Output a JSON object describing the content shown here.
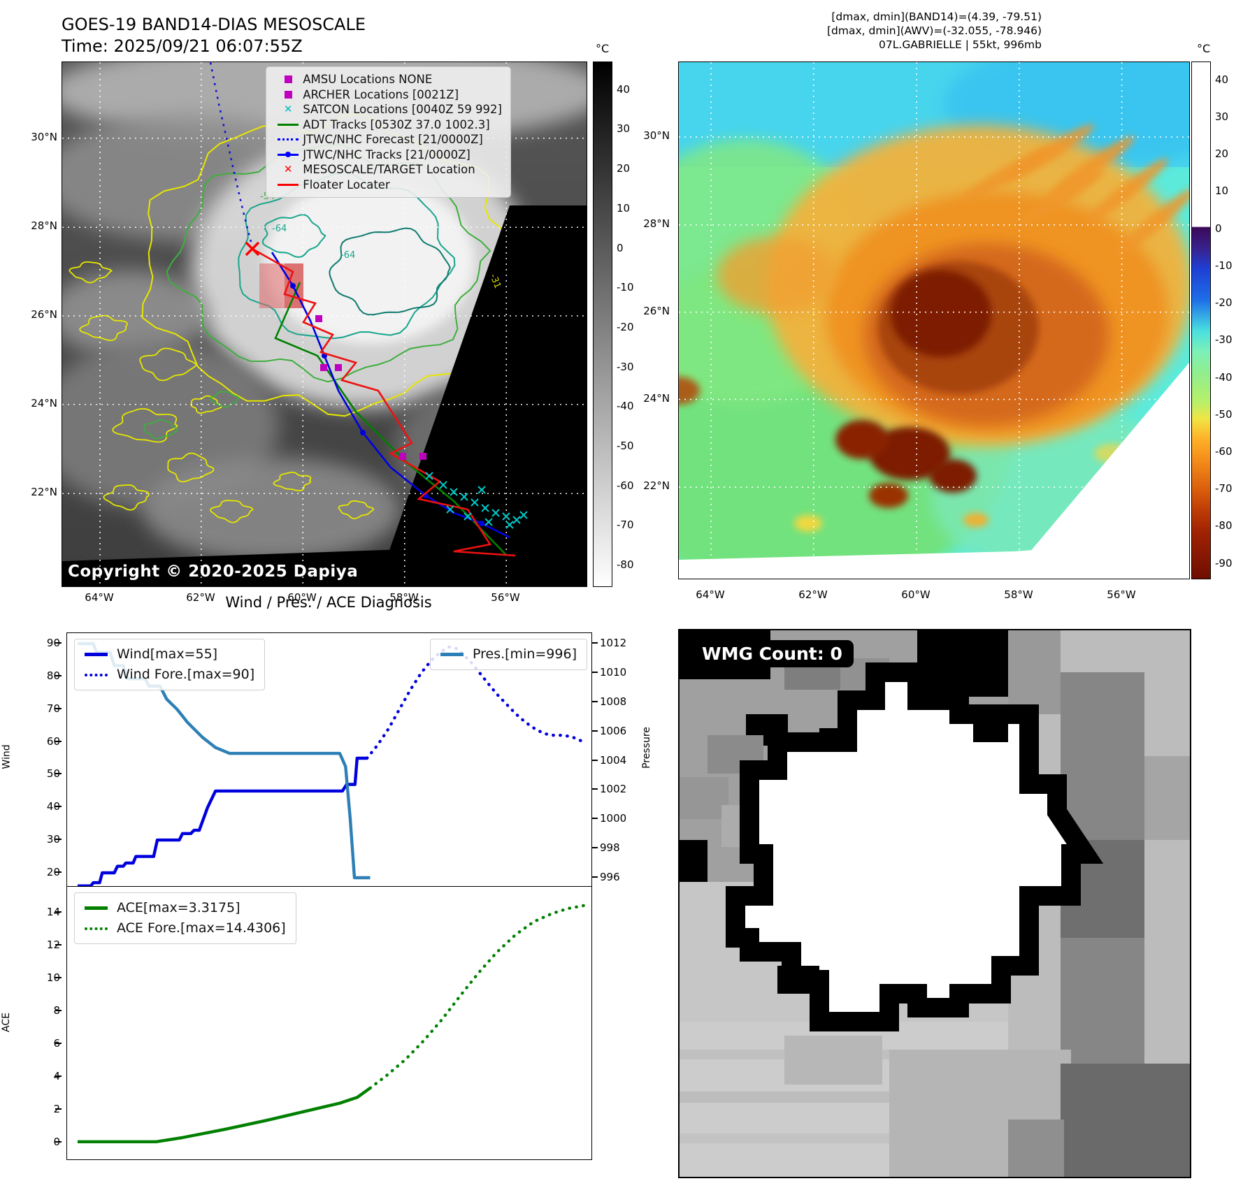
{
  "header": {
    "title_line1": "GOES-19 BAND14-DIAS MESOSCALE",
    "title_line2": "Time: 2025/09/21 06:07:55Z",
    "info_line1": "[dmax, dmin](BAND14)=(4.39, -79.51)",
    "info_line2": "[dmax, dmin](AWV)=(-32.055, -78.946)",
    "info_line3": "07L.GABRIELLE | 55kt, 996mb"
  },
  "band14_panel": {
    "copyright": "Copyright © 2020-2025 Dapiya",
    "legend_items": [
      {
        "label": "AMSU Locations NONE",
        "marker": "square",
        "color": "#bf00bf"
      },
      {
        "label": "ARCHER Locations [0021Z]",
        "marker": "square",
        "color": "#bf00bf"
      },
      {
        "label": "SATCON Locations [0040Z 59 992]",
        "marker": "x",
        "color": "#00bfbf"
      },
      {
        "label": "ADT Tracks [0530Z 37.0 1002.3]",
        "marker": "line",
        "color": "#007f00"
      },
      {
        "label": "JTWC/NHC Forecast [21/0000Z]",
        "marker": "dotted",
        "color": "#0000ff"
      },
      {
        "label": "JTWC/NHC Tracks [21/0000Z]",
        "marker": "line-dot",
        "color": "#0000ff"
      },
      {
        "label": "MESOSCALE/TARGET Location",
        "marker": "x",
        "color": "#ff0000"
      },
      {
        "label": "Floater Locater",
        "marker": "line",
        "color": "#ff0000"
      }
    ],
    "contour_labels": [
      {
        "text": "-54",
        "color": "#3fae3f"
      },
      {
        "text": "-64",
        "color": "#18a58c"
      },
      {
        "text": "-31",
        "color": "#d8d800"
      }
    ],
    "axes": {
      "lat_ticks": [
        "30°N",
        "28°N",
        "26°N",
        "24°N",
        "22°N"
      ],
      "lon_ticks": [
        "64°W",
        "62°W",
        "60°W",
        "58°W",
        "56°W"
      ]
    },
    "colorbar": {
      "unit": "°C",
      "ticks": [
        "40",
        "30",
        "20",
        "10",
        "0",
        "-10",
        "-20",
        "-30",
        "-40",
        "-50",
        "-60",
        "-70",
        "-80"
      ],
      "stops": [
        [
          "0%",
          "#000000"
        ],
        [
          "100%",
          "#ffffff"
        ]
      ]
    }
  },
  "awv_panel": {
    "axes": {
      "lat_ticks": [
        "30°N",
        "28°N",
        "26°N",
        "24°N",
        "22°N"
      ],
      "lon_ticks": [
        "64°W",
        "62°W",
        "60°W",
        "58°W",
        "56°W"
      ]
    },
    "colorbar": {
      "unit": "°C",
      "ticks": [
        "40",
        "30",
        "20",
        "10",
        "0",
        "-10",
        "-20",
        "-30",
        "-40",
        "-50",
        "-60",
        "-70",
        "-80",
        "-90"
      ],
      "stops": [
        [
          "0%",
          "#ffffff"
        ],
        [
          "31.8%",
          "#ffffff"
        ],
        [
          "32%",
          "#3b0a59"
        ],
        [
          "36%",
          "#38218c"
        ],
        [
          "40%",
          "#1f3fd4"
        ],
        [
          "46%",
          "#1e6ee8"
        ],
        [
          "52%",
          "#48dfe0"
        ],
        [
          "56%",
          "#7df0b8"
        ],
        [
          "60%",
          "#8fee8f"
        ],
        [
          "66%",
          "#b9f068"
        ],
        [
          "69%",
          "#f0e545"
        ],
        [
          "73%",
          "#ffb028"
        ],
        [
          "78%",
          "#f08518"
        ],
        [
          "83%",
          "#d95c0c"
        ],
        [
          "87%",
          "#bc3a06"
        ],
        [
          "91%",
          "#a02202"
        ],
        [
          "100%",
          "#6e0e00"
        ]
      ]
    }
  },
  "diagnosis": {
    "title": "Wind / Pres. / ACE Diagnosis"
  },
  "chart_data": [
    {
      "type": "line",
      "title": "Wind / Pres. / ACE Diagnosis",
      "ylabel_left": "Wind",
      "ylabel_right": "Pressure",
      "yticks_left": [
        20,
        30,
        40,
        50,
        60,
        70,
        80,
        90
      ],
      "ylim_left": [
        15,
        93
      ],
      "yticks_right": [
        996,
        998,
        1000,
        1002,
        1004,
        1006,
        1008,
        1010,
        1012
      ],
      "ylim_right": [
        995.3,
        1012.7
      ],
      "grid": false,
      "series": [
        {
          "name": "Wind[max=55]",
          "axis": "left",
          "style": "solid",
          "color": "#0000dd",
          "points": [
            [
              0.02,
              16
            ],
            [
              0.045,
              16
            ],
            [
              0.05,
              17
            ],
            [
              0.062,
              17
            ],
            [
              0.067,
              20
            ],
            [
              0.09,
              20
            ],
            [
              0.096,
              22
            ],
            [
              0.107,
              22
            ],
            [
              0.112,
              23
            ],
            [
              0.126,
              23
            ],
            [
              0.131,
              25
            ],
            [
              0.165,
              25
            ],
            [
              0.172,
              30
            ],
            [
              0.214,
              30
            ],
            [
              0.22,
              32
            ],
            [
              0.236,
              32
            ],
            [
              0.242,
              33
            ],
            [
              0.252,
              33
            ],
            [
              0.268,
              40
            ],
            [
              0.283,
              45
            ],
            [
              0.525,
              45
            ],
            [
              0.533,
              47
            ],
            [
              0.549,
              47
            ],
            [
              0.553,
              55
            ],
            [
              0.572,
              55
            ]
          ]
        },
        {
          "name": "Wind Fore.[max=90]",
          "axis": "left",
          "style": "dotted",
          "color": "#0000dd",
          "points": [
            [
              0.572,
              55
            ],
            [
              0.592,
              59
            ],
            [
              0.613,
              64
            ],
            [
              0.634,
              70
            ],
            [
              0.655,
              76
            ],
            [
              0.675,
              81
            ],
            [
              0.695,
              85
            ],
            [
              0.713,
              87.5
            ],
            [
              0.728,
              89
            ],
            [
              0.742,
              88.5
            ],
            [
              0.757,
              86.5
            ],
            [
              0.772,
              84
            ],
            [
              0.787,
              81
            ],
            [
              0.802,
              78
            ],
            [
              0.82,
              74.5
            ],
            [
              0.838,
              71.5
            ],
            [
              0.856,
              68.5
            ],
            [
              0.874,
              66
            ],
            [
              0.892,
              64
            ],
            [
              0.91,
              62.5
            ],
            [
              0.928,
              62
            ],
            [
              0.946,
              62
            ],
            [
              0.963,
              61.5
            ],
            [
              0.985,
              60
            ]
          ]
        },
        {
          "name": "Pres.[min=996]",
          "axis": "right",
          "style": "solid",
          "color": "#2d7fb5",
          "points": [
            [
              0.02,
              1012
            ],
            [
              0.05,
              1012
            ],
            [
              0.056,
              1011.4
            ],
            [
              0.082,
              1011.4
            ],
            [
              0.09,
              1010.5
            ],
            [
              0.107,
              1010.5
            ],
            [
              0.115,
              1009.6
            ],
            [
              0.149,
              1009.6
            ],
            [
              0.156,
              1009.1
            ],
            [
              0.177,
              1009.1
            ],
            [
              0.19,
              1008.2
            ],
            [
              0.21,
              1007.5
            ],
            [
              0.23,
              1006.6
            ],
            [
              0.258,
              1005.6
            ],
            [
              0.283,
              1004.9
            ],
            [
              0.31,
              1004.5
            ],
            [
              0.52,
              1004.5
            ],
            [
              0.531,
              1003.6
            ],
            [
              0.54,
              1000
            ],
            [
              0.548,
              996
            ],
            [
              0.578,
              996
            ]
          ]
        }
      ]
    },
    {
      "type": "line",
      "ylabel_left": "ACE",
      "yticks_left": [
        0,
        2,
        4,
        6,
        8,
        10,
        12,
        14
      ],
      "ylim_left": [
        -0.8,
        15.2
      ],
      "grid": false,
      "series": [
        {
          "name": "ACE[max=3.3175]",
          "axis": "left",
          "style": "solid",
          "color": "#008000",
          "points": [
            [
              0.02,
              0.05
            ],
            [
              0.17,
              0.05
            ],
            [
              0.22,
              0.3
            ],
            [
              0.3,
              0.8
            ],
            [
              0.38,
              1.35
            ],
            [
              0.46,
              1.95
            ],
            [
              0.52,
              2.4
            ],
            [
              0.553,
              2.75
            ],
            [
              0.578,
              3.3175
            ]
          ]
        },
        {
          "name": "ACE Fore.[max=14.4306]",
          "axis": "left",
          "style": "dotted",
          "color": "#008000",
          "points": [
            [
              0.578,
              3.3175
            ],
            [
              0.61,
              4.1
            ],
            [
              0.645,
              5.05
            ],
            [
              0.68,
              6.2
            ],
            [
              0.715,
              7.5
            ],
            [
              0.75,
              8.95
            ],
            [
              0.785,
              10.35
            ],
            [
              0.82,
              11.6
            ],
            [
              0.855,
              12.65
            ],
            [
              0.89,
              13.45
            ],
            [
              0.925,
              13.95
            ],
            [
              0.955,
              14.25
            ],
            [
              0.985,
              14.4306
            ]
          ]
        }
      ]
    }
  ],
  "wmg_panel": {
    "count_label": "WMG Count: 0"
  }
}
